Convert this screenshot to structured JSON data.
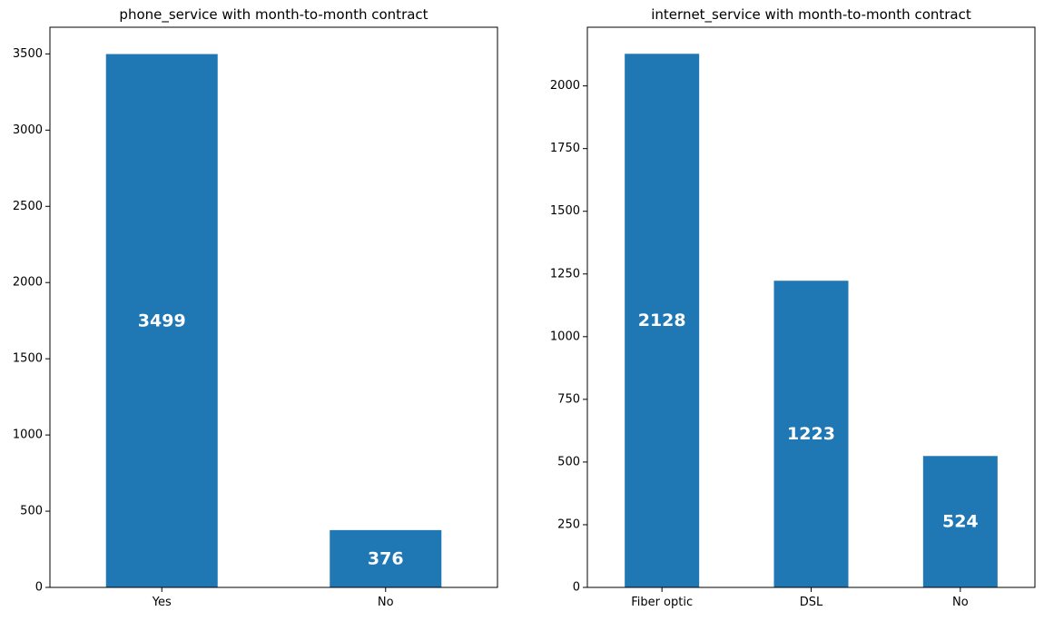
{
  "chart_data": [
    {
      "type": "bar",
      "title": "phone_service with month-to-month contract",
      "xlabel": "",
      "ylabel": "",
      "categories": [
        "Yes",
        "No"
      ],
      "values": [
        3499,
        376
      ],
      "ylim": [
        0,
        3675
      ],
      "yticks": [
        0,
        500,
        1000,
        1500,
        2000,
        2500,
        3000,
        3500
      ],
      "bar_color": "#1f77b4",
      "label_color": "#ffffff",
      "grid": false,
      "legend": "none"
    },
    {
      "type": "bar",
      "title": "internet_service with month-to-month contract",
      "xlabel": "",
      "ylabel": "",
      "categories": [
        "Fiber optic",
        "DSL",
        "No"
      ],
      "values": [
        2128,
        1223,
        524
      ],
      "ylim": [
        0,
        2234
      ],
      "yticks": [
        0,
        250,
        500,
        750,
        1000,
        1250,
        1500,
        1750,
        2000
      ],
      "bar_color": "#1f77b4",
      "label_color": "#ffffff",
      "grid": false,
      "legend": "none"
    }
  ]
}
